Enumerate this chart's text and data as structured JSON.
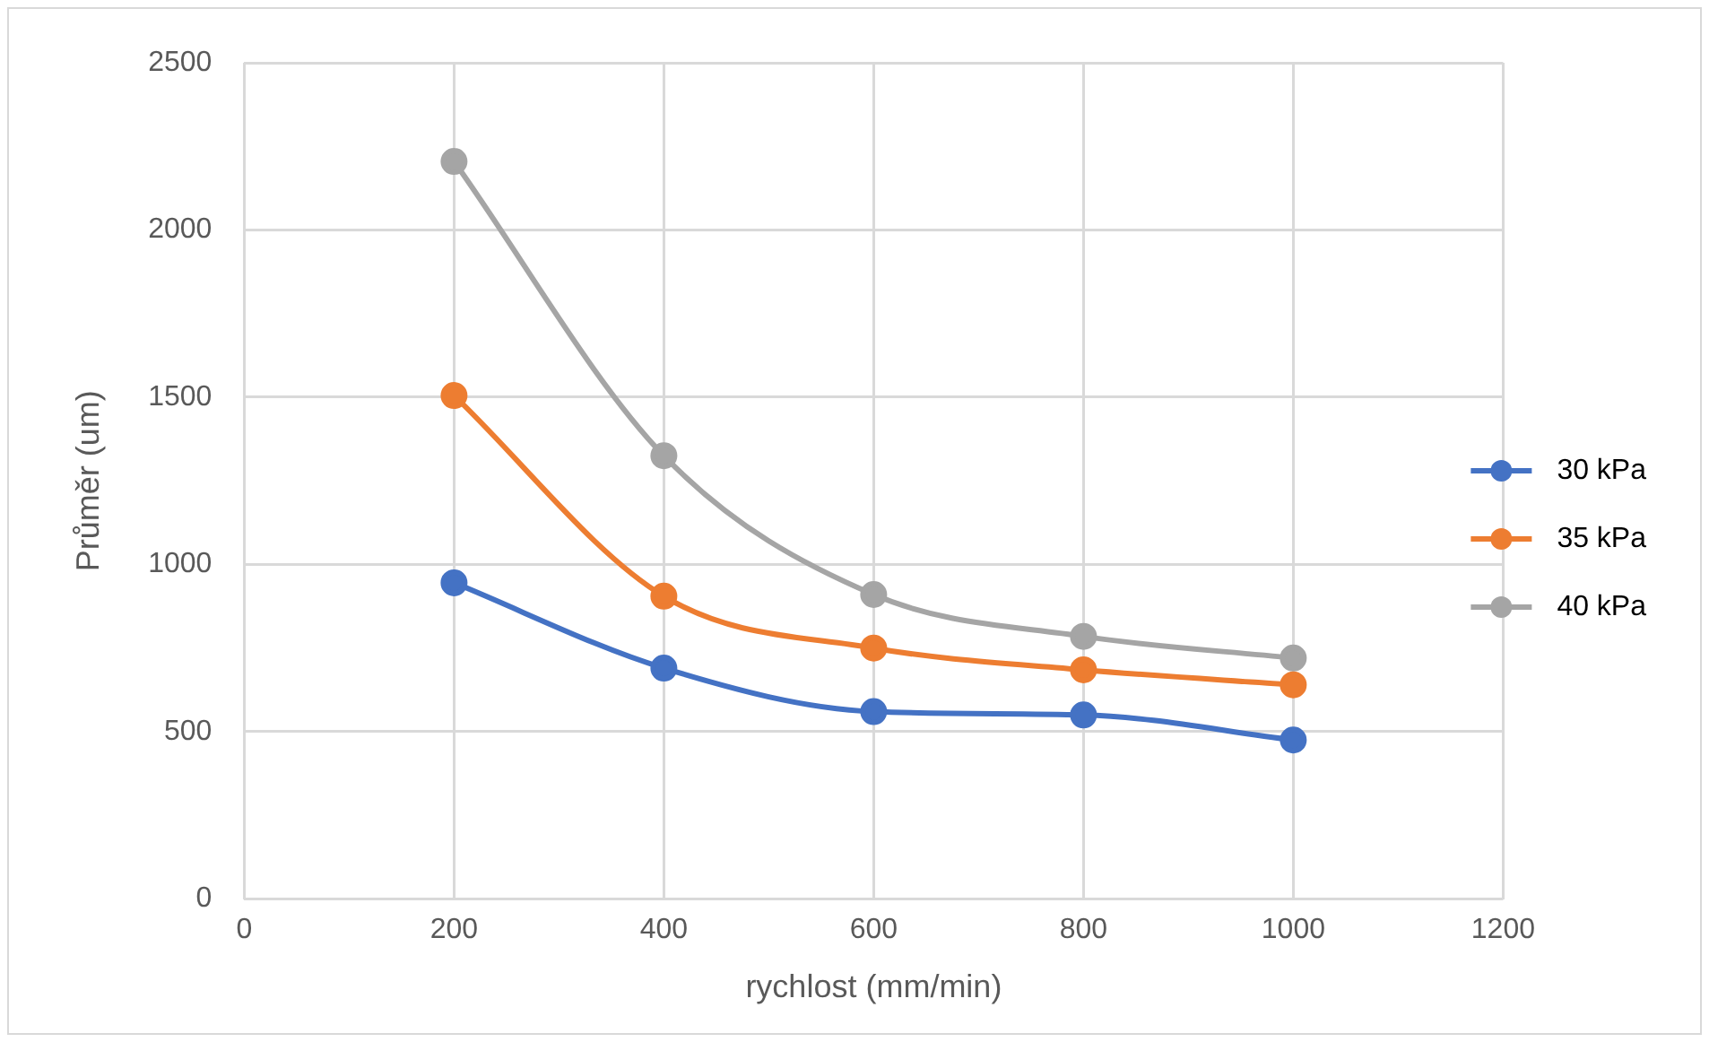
{
  "chart_data": {
    "type": "line",
    "xlabel": "rychlost (mm/min)",
    "ylabel": "Průměr (um)",
    "x": [
      200,
      400,
      600,
      800,
      1000
    ],
    "series": [
      {
        "name": "30 kPa",
        "color": "#4472c4",
        "values": [
          945,
          690,
          560,
          550,
          475
        ]
      },
      {
        "name": "35 kPa",
        "color": "#ed7d31",
        "values": [
          1505,
          905,
          750,
          685,
          640
        ]
      },
      {
        "name": "40 kPa",
        "color": "#a5a5a5",
        "values": [
          2205,
          1325,
          910,
          785,
          720
        ]
      }
    ],
    "xlim": [
      0,
      1200
    ],
    "xticks": [
      0,
      200,
      400,
      600,
      800,
      1000,
      1200
    ],
    "ylim": [
      0,
      2500
    ],
    "yticks": [
      0,
      500,
      1000,
      1500,
      2000,
      2500
    ],
    "grid": true,
    "legend": "right",
    "marker": "circle",
    "line_style": "solid"
  }
}
